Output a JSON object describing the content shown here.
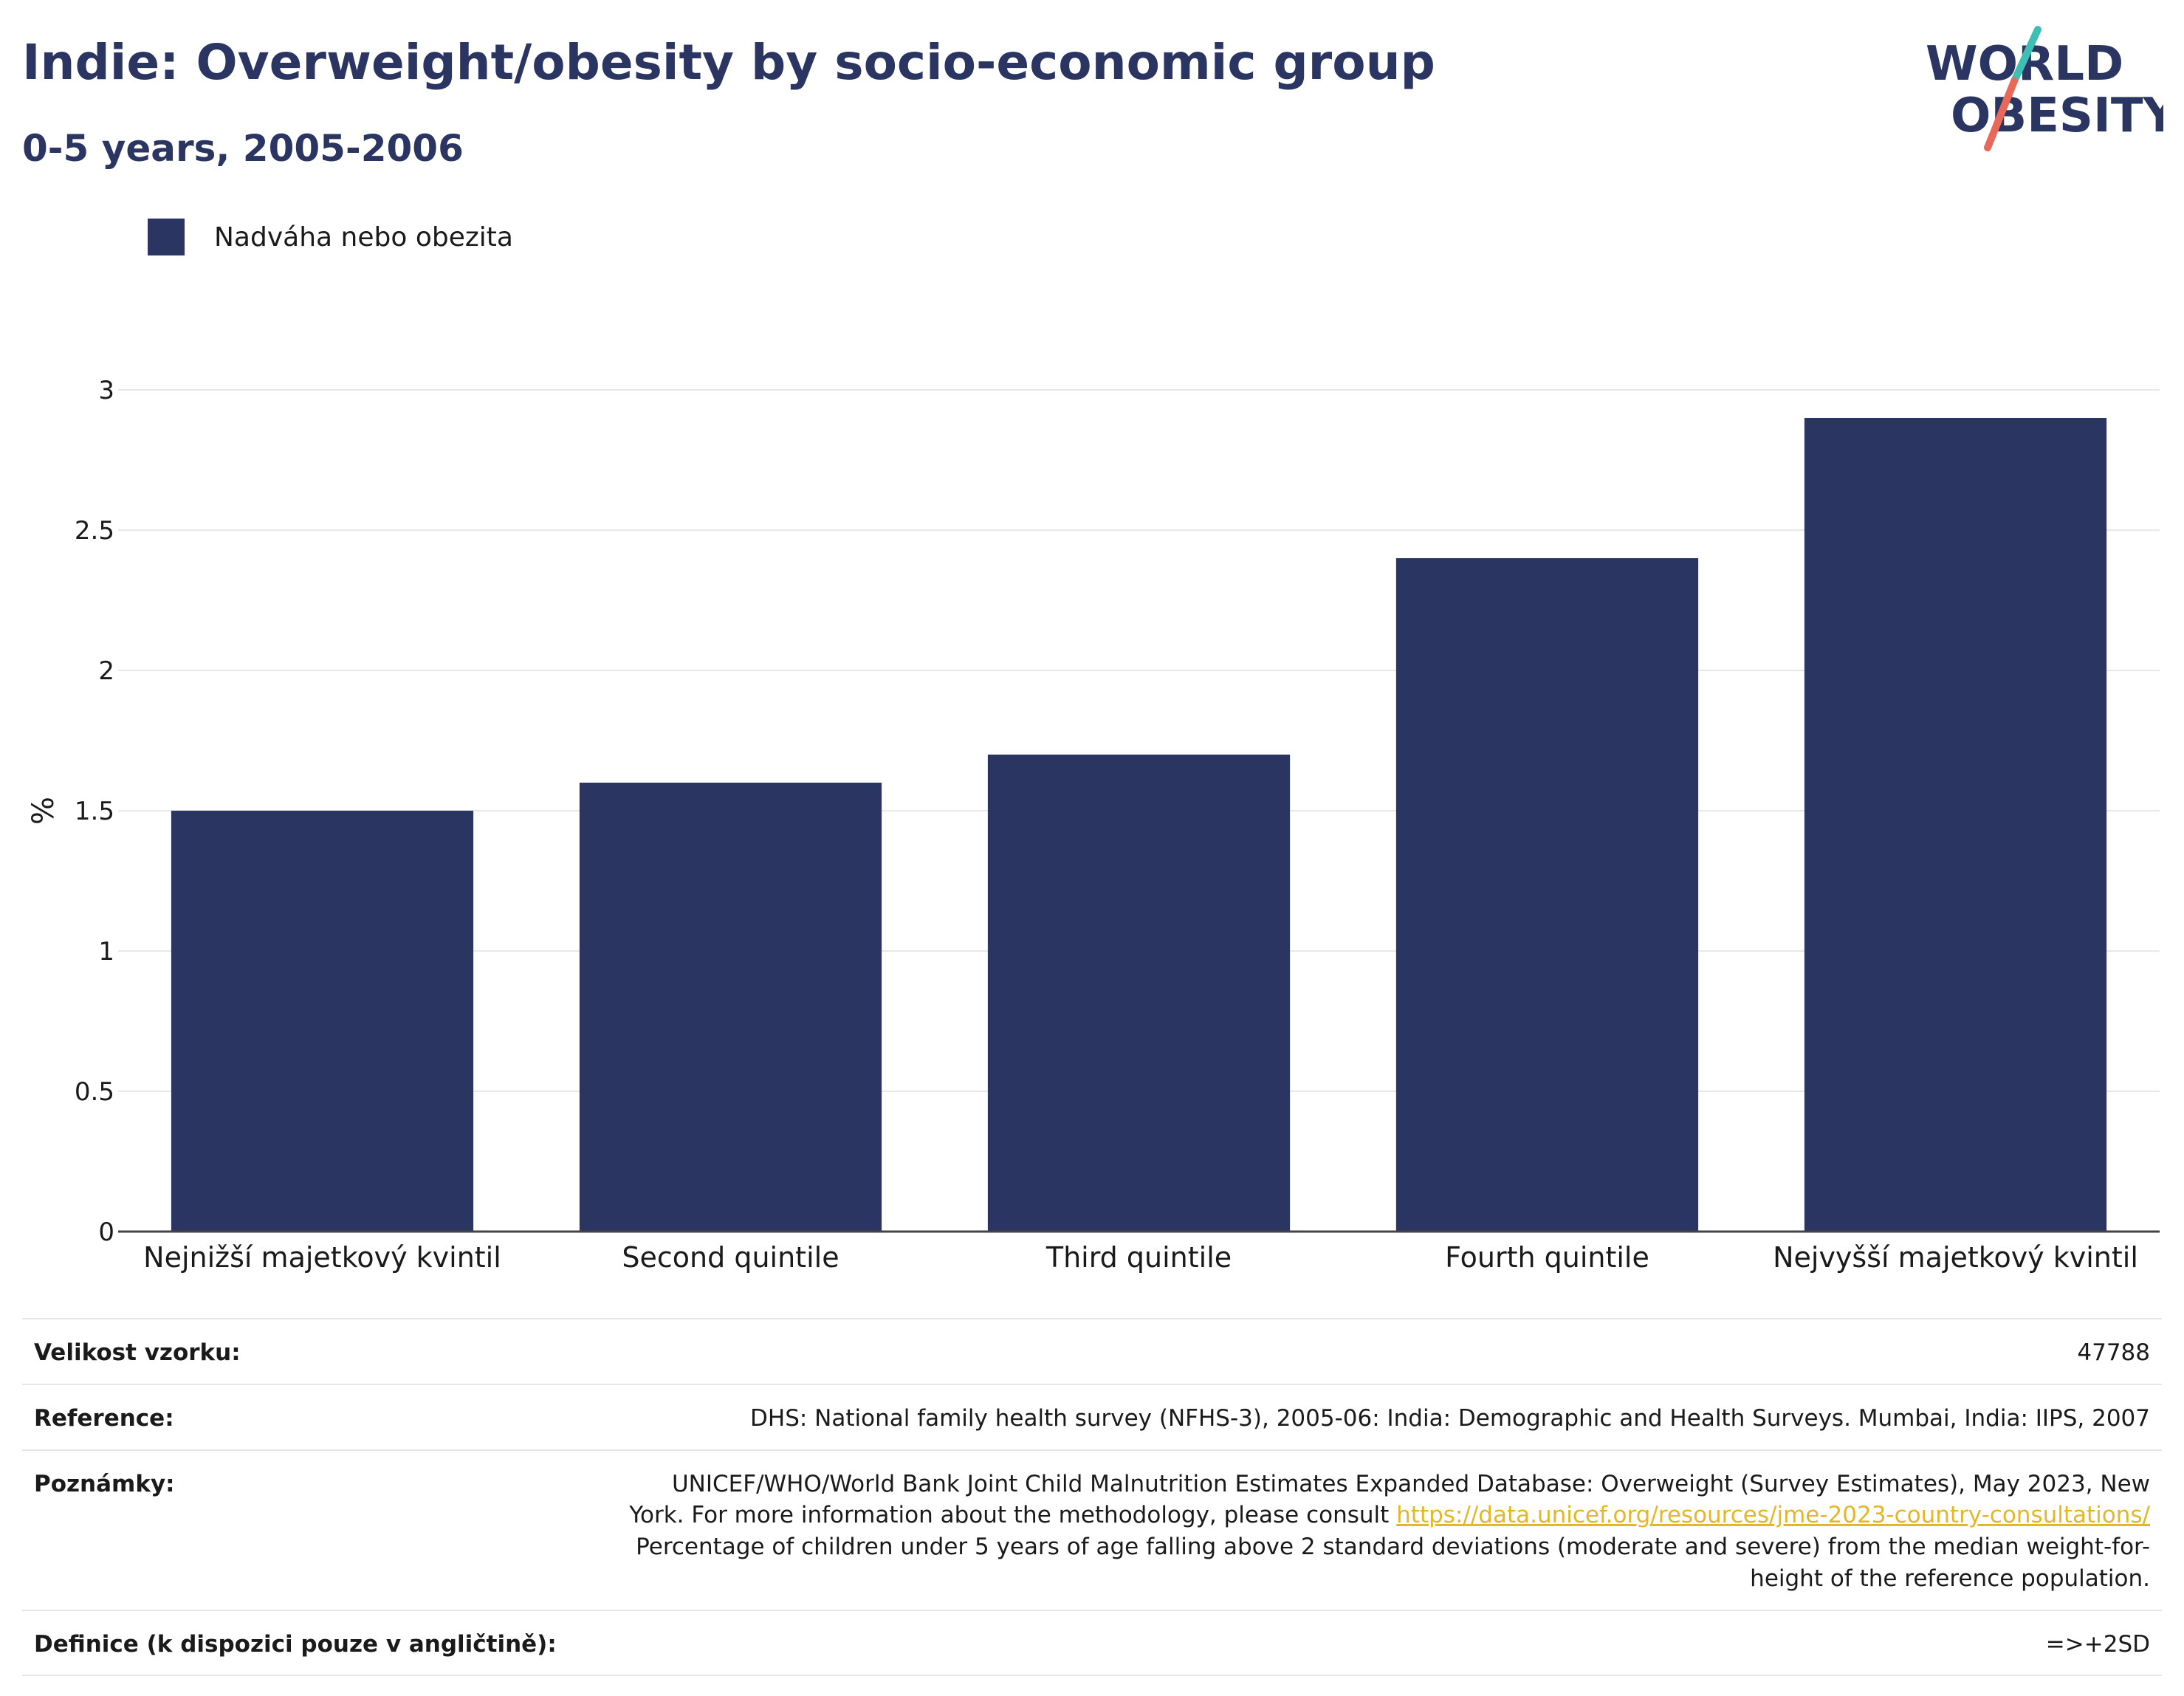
{
  "header": {
    "title": "Indie: Overweight/obesity by socio-economic group",
    "subtitle": "0-5 years, 2005-2006"
  },
  "logo": {
    "line1": "WORLD",
    "line2": "OBESITY",
    "color": "#2a3561",
    "accent_teal": "#3fbfb3",
    "accent_red": "#e8685a"
  },
  "chart_data": {
    "type": "bar",
    "title": "Indie: Overweight/obesity by socio-economic group",
    "subtitle": "0-5 years, 2005-2006",
    "categories": [
      "Nejnižší majetkový kvintil",
      "Second quintile",
      "Third quintile",
      "Fourth quintile",
      "Nejvyšší majetkový kvintil"
    ],
    "series": [
      {
        "name": "Nadváha nebo obezita",
        "values": [
          1.5,
          1.6,
          1.7,
          2.4,
          2.9
        ],
        "color": "#2a3561"
      }
    ],
    "xlabel": "",
    "ylabel": "%",
    "ylim": [
      0,
      3
    ],
    "yticks": [
      "0",
      "0.5",
      "1",
      "1.5",
      "2",
      "2.5",
      "3"
    ],
    "grid": true,
    "legend_position": "top-left"
  },
  "info": {
    "sample_label": "Velikost vzorku:",
    "sample_value": "47788",
    "reference_label": "Reference:",
    "reference_value": "DHS: National family health survey (NFHS-3), 2005-06: India: Demographic and Health Surveys. Mumbai, India: IIPS, 2007",
    "notes_label": "Poznámky:",
    "notes_part1": "UNICEF/WHO/World Bank Joint Child Malnutrition Estimates Expanded Database: Overweight (Survey Estimates), May 2023, New York. For more information about the methodology, please consult ",
    "notes_link": "https://data.unicef.org/resources/jme-2023-country-consultations/",
    "notes_part2": "Percentage of children under 5 years of age falling above 2 standard deviations (moderate and severe) from the median weight-for-height of the reference population.",
    "definition_label": "Definice (k dispozici pouze v angličtině):",
    "definition_value": "=>+2SD"
  }
}
